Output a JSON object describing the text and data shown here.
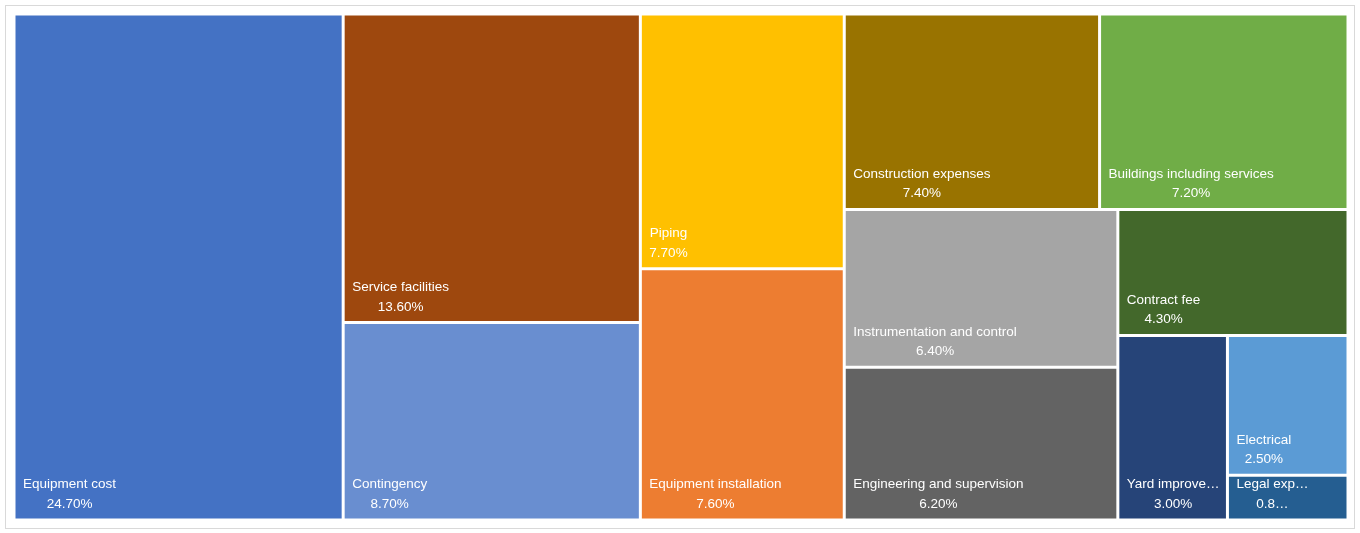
{
  "chart_data": {
    "type": "other",
    "categories": [
      "Equipment cost",
      "Service facilities",
      "Contingency",
      "Piping",
      "Equipment installation",
      "Construction expenses",
      "Buildings including services",
      "Instrumentation and control",
      "Engineering and supervision",
      "Contract fee",
      "Yard improve…",
      "Electrical",
      "Legal exp…"
    ],
    "values": [
      24.7,
      13.6,
      8.7,
      7.7,
      7.6,
      7.4,
      7.2,
      6.4,
      6.2,
      4.3,
      3.0,
      2.5,
      0.8
    ],
    "value_labels": [
      "24.70%",
      "13.60%",
      "8.70%",
      "7.70%",
      "7.60%",
      "7.40%",
      "7.20%",
      "6.40%",
      "6.20%",
      "4.30%",
      "3.00%",
      "2.50%",
      "0.8…"
    ],
    "colors": [
      "#4472c4",
      "#9e480e",
      "#698ed0",
      "#ffc000",
      "#ed7d31",
      "#997300",
      "#70ad47",
      "#a5a5a5",
      "#636363",
      "#43682b",
      "#264478",
      "#5b9bd5",
      "#255e91"
    ]
  }
}
